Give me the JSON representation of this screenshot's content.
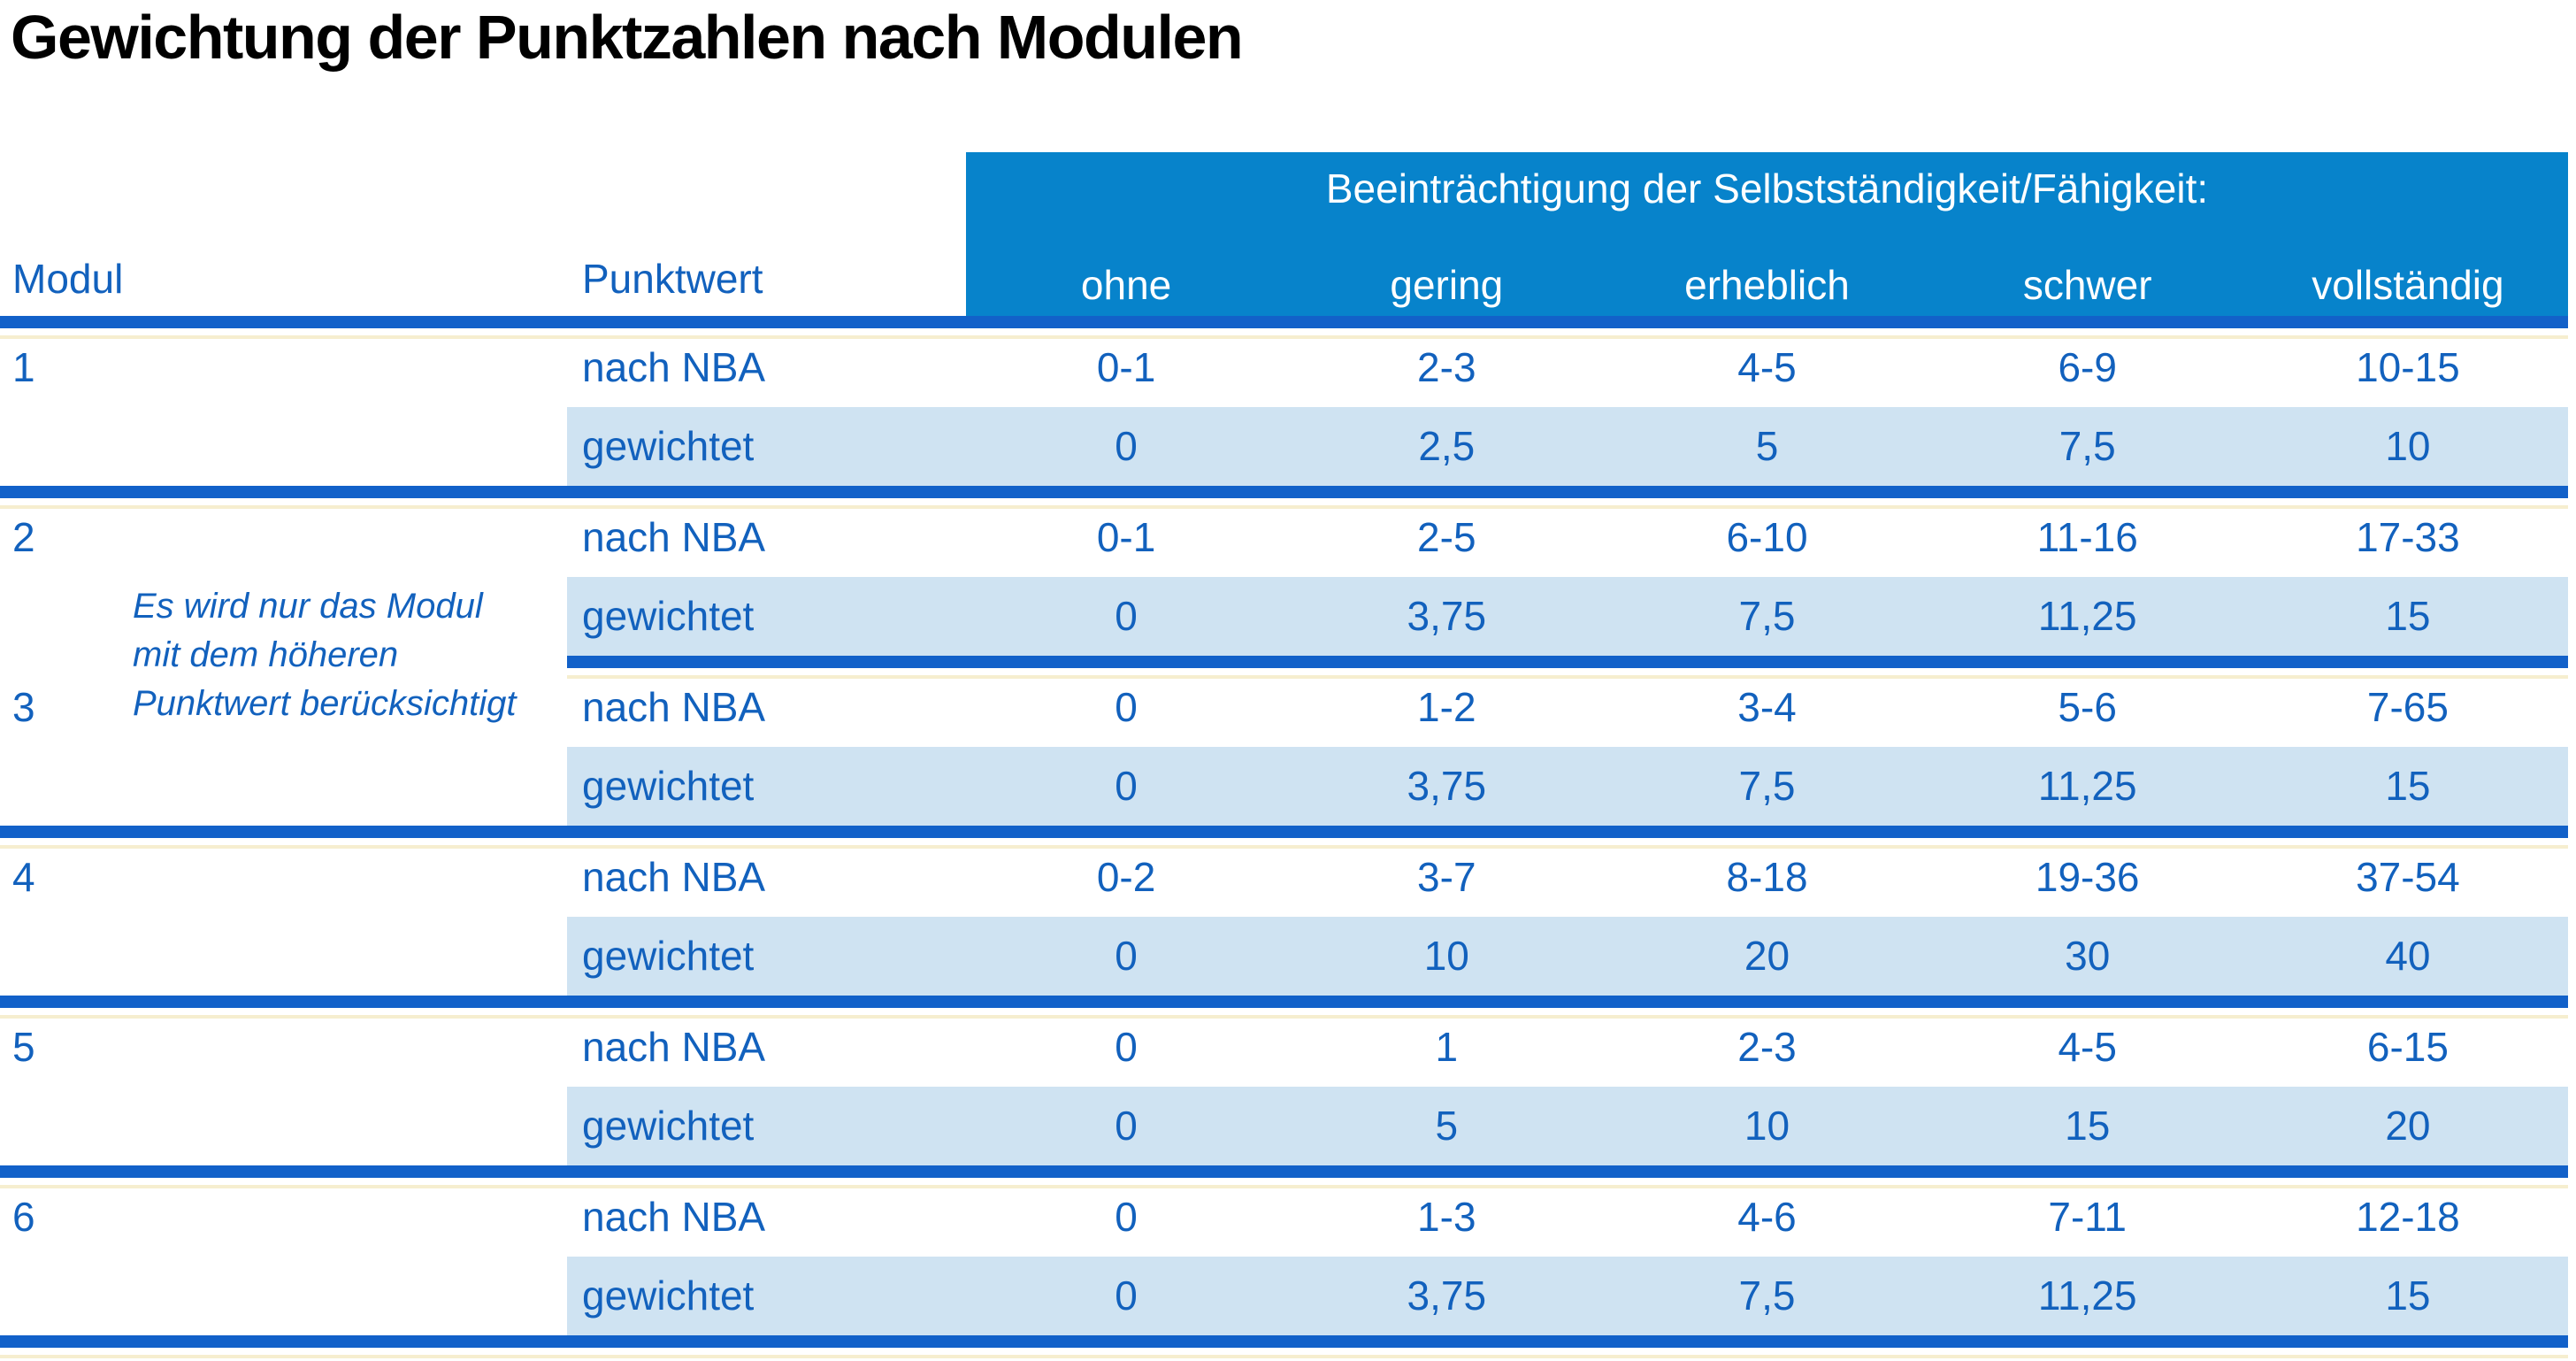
{
  "title": "Gewichtung der Punktzahlen nach Modulen",
  "colors": {
    "banner_blue": "#0783cb",
    "separator_blue": "#1261c9",
    "row_band_light_blue": "#cfe3f2",
    "text_blue": "#1261bd",
    "title_black": "#000000"
  },
  "table": {
    "banner_title": "Beeinträchtigung der Selbstständigkeit/Fähigkeit:",
    "col_headers": [
      "ohne",
      "gering",
      "erheblich",
      "schwer",
      "vollständig"
    ],
    "left_headers": {
      "modul": "Modul",
      "punktwert": "Punktwert"
    },
    "row_labels": {
      "nba": "nach NBA",
      "weighted": "gewichtet"
    },
    "note": "Es wird nur das Modul mit dem höheren Punktwert berücksichtigt",
    "note_lines": [
      "Es wird nur das Modul",
      "mit dem höheren",
      "Punktwert berücksichtigt"
    ],
    "modules": [
      {
        "id": "1",
        "nba": [
          "0-1",
          "2-3",
          "4-5",
          "6-9",
          "10-15"
        ],
        "weighted": [
          "0",
          "2,5",
          "5",
          "7,5",
          "10"
        ]
      },
      {
        "id": "2",
        "nba": [
          "0-1",
          "2-5",
          "6-10",
          "11-16",
          "17-33"
        ],
        "weighted": [
          "0",
          "3,75",
          "7,5",
          "11,25",
          "15"
        ]
      },
      {
        "id": "3",
        "nba": [
          "0",
          "1-2",
          "3-4",
          "5-6",
          "7-65"
        ],
        "weighted": [
          "0",
          "3,75",
          "7,5",
          "11,25",
          "15"
        ]
      },
      {
        "id": "4",
        "nba": [
          "0-2",
          "3-7",
          "8-18",
          "19-36",
          "37-54"
        ],
        "weighted": [
          "0",
          "10",
          "20",
          "30",
          "40"
        ]
      },
      {
        "id": "5",
        "nba": [
          "0",
          "1",
          "2-3",
          "4-5",
          "6-15"
        ],
        "weighted": [
          "0",
          "5",
          "10",
          "15",
          "20"
        ]
      },
      {
        "id": "6",
        "nba": [
          "0",
          "1-3",
          "4-6",
          "7-11",
          "12-18"
        ],
        "weighted": [
          "0",
          "3,75",
          "7,5",
          "11,25",
          "15"
        ]
      }
    ]
  }
}
